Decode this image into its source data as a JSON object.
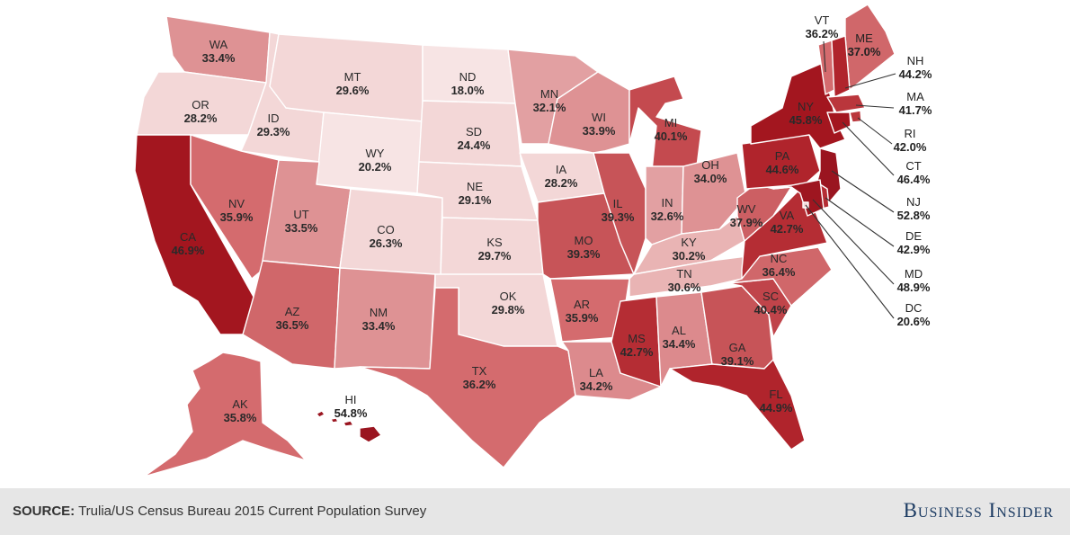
{
  "map": {
    "legend_colors": {
      "very_light": "#f3d7d7",
      "light": "#e9b4b4",
      "medium_light": "#de9294",
      "medium": "#d46b6e",
      "medium_dark": "#c44a4f",
      "dark": "#b22a31",
      "darkest": "#9a1520"
    },
    "states": [
      {
        "abbr": "WA",
        "value": "33.4%",
        "color": "#de9294"
      },
      {
        "abbr": "OR",
        "value": "28.2%",
        "color": "#f3d7d7"
      },
      {
        "abbr": "CA",
        "value": "46.9%",
        "color": "#a3161f"
      },
      {
        "abbr": "ID",
        "value": "29.3%",
        "color": "#f3d7d7"
      },
      {
        "abbr": "NV",
        "value": "35.9%",
        "color": "#d46b6e"
      },
      {
        "abbr": "MT",
        "value": "29.6%",
        "color": "#f3d7d7"
      },
      {
        "abbr": "WY",
        "value": "20.2%",
        "color": "#f7e4e4"
      },
      {
        "abbr": "UT",
        "value": "33.5%",
        "color": "#de9294"
      },
      {
        "abbr": "AZ",
        "value": "36.5%",
        "color": "#d0676a"
      },
      {
        "abbr": "CO",
        "value": "26.3%",
        "color": "#f3d7d7"
      },
      {
        "abbr": "NM",
        "value": "33.4%",
        "color": "#de9294"
      },
      {
        "abbr": "ND",
        "value": "18.0%",
        "color": "#f7e4e4"
      },
      {
        "abbr": "SD",
        "value": "24.4%",
        "color": "#f3d7d7"
      },
      {
        "abbr": "NE",
        "value": "29.1%",
        "color": "#f3d7d7"
      },
      {
        "abbr": "KS",
        "value": "29.7%",
        "color": "#f3d7d7"
      },
      {
        "abbr": "OK",
        "value": "29.8%",
        "color": "#f3d7d7"
      },
      {
        "abbr": "TX",
        "value": "36.2%",
        "color": "#d46b6e"
      },
      {
        "abbr": "MN",
        "value": "32.1%",
        "color": "#e2a0a2"
      },
      {
        "abbr": "IA",
        "value": "28.2%",
        "color": "#f3d7d7"
      },
      {
        "abbr": "MO",
        "value": "39.3%",
        "color": "#c75458"
      },
      {
        "abbr": "AR",
        "value": "35.9%",
        "color": "#d46b6e"
      },
      {
        "abbr": "LA",
        "value": "34.2%",
        "color": "#dc8a8d"
      },
      {
        "abbr": "WI",
        "value": "33.9%",
        "color": "#de9294"
      },
      {
        "abbr": "IL",
        "value": "39.3%",
        "color": "#c75458"
      },
      {
        "abbr": "MI",
        "value": "40.1%",
        "color": "#c44a4f"
      },
      {
        "abbr": "IN",
        "value": "32.6%",
        "color": "#e2a0a2"
      },
      {
        "abbr": "OH",
        "value": "34.0%",
        "color": "#de9294"
      },
      {
        "abbr": "KY",
        "value": "30.2%",
        "color": "#e9b4b4"
      },
      {
        "abbr": "TN",
        "value": "30.6%",
        "color": "#e9b4b4"
      },
      {
        "abbr": "MS",
        "value": "42.7%",
        "color": "#b52d34"
      },
      {
        "abbr": "AL",
        "value": "34.4%",
        "color": "#dc8a8d"
      },
      {
        "abbr": "GA",
        "value": "39.1%",
        "color": "#c75458"
      },
      {
        "abbr": "FL",
        "value": "44.9%",
        "color": "#b0242c"
      },
      {
        "abbr": "SC",
        "value": "40.4%",
        "color": "#c0444a"
      },
      {
        "abbr": "NC",
        "value": "36.4%",
        "color": "#d0676a"
      },
      {
        "abbr": "VA",
        "value": "42.7%",
        "color": "#b52d34"
      },
      {
        "abbr": "WV",
        "value": "37.9%",
        "color": "#cc5f63"
      },
      {
        "abbr": "PA",
        "value": "44.6%",
        "color": "#b0242c"
      },
      {
        "abbr": "NY",
        "value": "45.8%",
        "color": "#a3161f"
      },
      {
        "abbr": "VT",
        "value": "36.2%",
        "color": "#d46b6e"
      },
      {
        "abbr": "ME",
        "value": "37.0%",
        "color": "#d0676a"
      },
      {
        "abbr": "NH",
        "value": "44.2%",
        "color": "#b0242c"
      },
      {
        "abbr": "MA",
        "value": "41.7%",
        "color": "#ba363c"
      },
      {
        "abbr": "RI",
        "value": "42.0%",
        "color": "#ba363c"
      },
      {
        "abbr": "CT",
        "value": "46.4%",
        "color": "#a3161f"
      },
      {
        "abbr": "NJ",
        "value": "52.8%",
        "color": "#9a1520"
      },
      {
        "abbr": "DE",
        "value": "42.9%",
        "color": "#b52d34"
      },
      {
        "abbr": "MD",
        "value": "48.9%",
        "color": "#9e1620"
      },
      {
        "abbr": "DC",
        "value": "20.6%",
        "color": "#f3d7d7"
      },
      {
        "abbr": "AK",
        "value": "35.8%",
        "color": "#d46b6e"
      },
      {
        "abbr": "HI",
        "value": "54.8%",
        "color": "#9a1520"
      }
    ]
  },
  "footer": {
    "source_key": "SOURCE:",
    "source_text": " Trulia/US Census Bureau 2015 Current Population Survey",
    "brand": "Business Insider"
  }
}
